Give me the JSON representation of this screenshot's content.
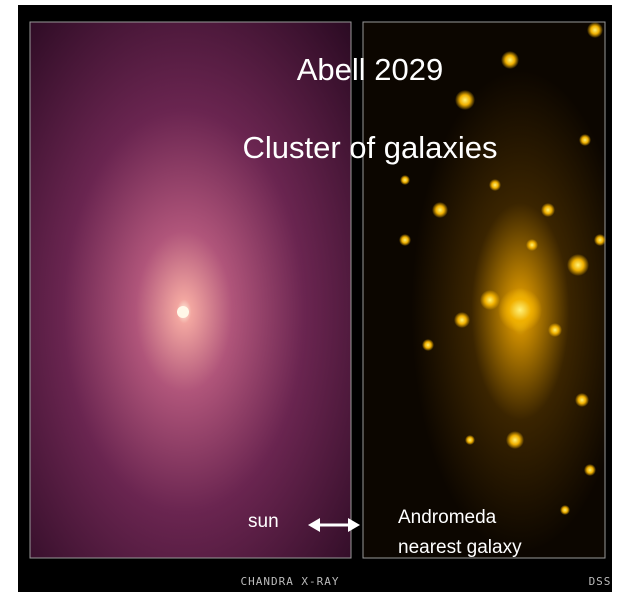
{
  "title": "Abell 2029",
  "subtitle": "Cluster of galaxies",
  "labels": {
    "sun": "sun",
    "andromeda": "Andromeda",
    "nearest": "nearest galaxy"
  },
  "credits": {
    "left": "CHANDRA X-RAY",
    "right": "DSS"
  }
}
